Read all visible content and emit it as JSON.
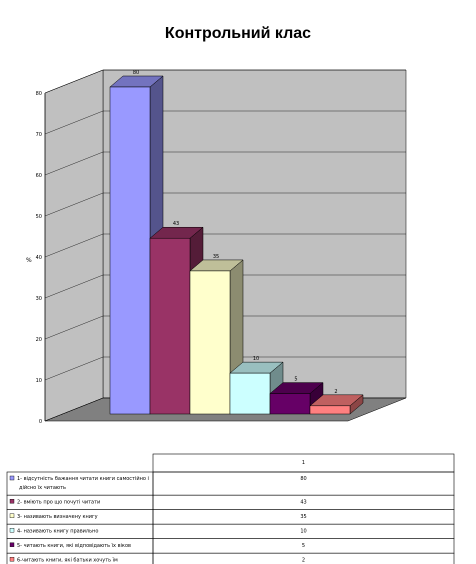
{
  "chart_data": {
    "type": "bar",
    "title": "Контрольний клас",
    "ylabel": "%",
    "ylim": [
      0,
      80
    ],
    "yticks": [
      0,
      10,
      20,
      30,
      40,
      50,
      60,
      70,
      80
    ],
    "grid": true,
    "series_header": "1",
    "categories": [
      "1- відсутність бажання читати книги самостійно і дійсно їх читають",
      "2- вміють про що почуті читати",
      "3- називають визначену книгу",
      "4- називають книгу правильно",
      "5- читають книги, які відповідають їх віков",
      "6-читають книги, які батьки хочуть їм"
    ],
    "values": [
      80,
      43,
      35,
      10,
      5,
      2
    ],
    "colors": [
      "#9999ff",
      "#993366",
      "#ffffcc",
      "#ccffff",
      "#660066",
      "#ff8080"
    ]
  }
}
